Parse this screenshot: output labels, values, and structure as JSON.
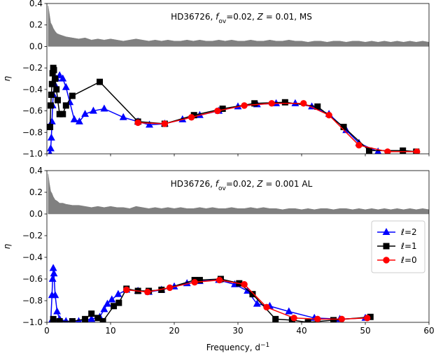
{
  "chart_data": [
    {
      "type": "line",
      "annotation": [
        "HD36726, ",
        "f",
        "ov",
        "=0.02, ",
        "Z",
        " = 0.01, MS"
      ],
      "ylabel": "η",
      "xlim": [
        0,
        60
      ],
      "ylim": [
        -1.0,
        0.4
      ],
      "yticks": [
        {
          "value": -1.0,
          "label": "−1.0"
        },
        {
          "value": -0.8,
          "label": "−0.8"
        },
        {
          "value": -0.6,
          "label": "−0.6"
        },
        {
          "value": -0.4,
          "label": "−0.4"
        },
        {
          "value": -0.2,
          "label": "−0.2"
        },
        {
          "value": 0,
          "label": "0.0"
        },
        0.2,
        0.4
      ],
      "spectrum": {
        "color": "#808080",
        "x": [
          0.2,
          0.4,
          0.6,
          0.8,
          1.0,
          1.3,
          1.6,
          2.0,
          2.5,
          3,
          4,
          5,
          6,
          7,
          8,
          9,
          10,
          11,
          12,
          13,
          14,
          15,
          16,
          17,
          18,
          19,
          20,
          21,
          22,
          23,
          24,
          25,
          26,
          27,
          28,
          29,
          30,
          31,
          32,
          33,
          34,
          35,
          36,
          37,
          38,
          39,
          40,
          41,
          42,
          43,
          44,
          45,
          46,
          47,
          48,
          49,
          50,
          51,
          52,
          53,
          54,
          55,
          56,
          57,
          58,
          59,
          60
        ],
        "values": [
          0.38,
          0.3,
          0.22,
          0.2,
          0.17,
          0.14,
          0.12,
          0.11,
          0.1,
          0.09,
          0.08,
          0.07,
          0.08,
          0.06,
          0.07,
          0.06,
          0.07,
          0.06,
          0.05,
          0.06,
          0.07,
          0.06,
          0.05,
          0.06,
          0.05,
          0.06,
          0.05,
          0.05,
          0.06,
          0.05,
          0.06,
          0.05,
          0.05,
          0.06,
          0.05,
          0.06,
          0.05,
          0.05,
          0.06,
          0.05,
          0.05,
          0.06,
          0.05,
          0.05,
          0.06,
          0.05,
          0.05,
          0.04,
          0.05,
          0.05,
          0.04,
          0.05,
          0.05,
          0.04,
          0.05,
          0.05,
          0.04,
          0.05,
          0.04,
          0.05,
          0.04,
          0.05,
          0.04,
          0.05,
          0.04,
          0.05,
          0.04
        ]
      },
      "series": [
        {
          "color": "#0000ff",
          "marker": "triangle",
          "x": [
            0.5,
            0.6,
            0.7,
            0.8,
            0.9,
            1.0,
            1.2,
            1.5,
            2.0,
            2.5,
            3.0,
            3.6,
            4.3,
            5.1,
            6.0,
            7.3,
            9.0,
            12.0,
            14.3,
            16.1,
            18.5,
            21.3,
            24.0,
            27.0,
            30.0,
            33.0,
            36.0,
            39.0,
            41.6,
            44.3,
            47.0,
            49.0,
            52.0
          ],
          "values": [
            -1.0,
            -0.95,
            -0.85,
            -0.7,
            -0.55,
            -0.45,
            -0.35,
            -0.3,
            -0.27,
            -0.3,
            -0.38,
            -0.52,
            -0.68,
            -0.7,
            -0.63,
            -0.6,
            -0.58,
            -0.66,
            -0.7,
            -0.73,
            -0.72,
            -0.68,
            -0.64,
            -0.6,
            -0.56,
            -0.54,
            -0.53,
            -0.53,
            -0.56,
            -0.63,
            -0.78,
            -0.9,
            -0.98
          ]
        },
        {
          "color": "#000000",
          "marker": "square",
          "x": [
            0.5,
            0.6,
            0.7,
            0.8,
            0.9,
            1.0,
            1.1,
            1.3,
            1.5,
            1.7,
            2.0,
            2.5,
            3.0,
            4.0,
            8.3,
            14.3,
            18.5,
            23.1,
            27.6,
            32.6,
            37.4,
            42.5,
            46.6,
            50.6,
            55.9,
            58.0
          ],
          "values": [
            -0.75,
            -0.55,
            -0.45,
            -0.35,
            -0.25,
            -0.2,
            -0.22,
            -0.3,
            -0.4,
            -0.5,
            -0.63,
            -0.63,
            -0.55,
            -0.46,
            -0.33,
            -0.7,
            -0.72,
            -0.64,
            -0.58,
            -0.53,
            -0.52,
            -0.56,
            -0.75,
            -0.97,
            -0.97,
            -0.98
          ]
        },
        {
          "color": "#ff0000",
          "marker": "circle",
          "x": [
            14.3,
            18.5,
            22.7,
            26.8,
            31.0,
            35.3,
            40.3,
            44.3,
            49.0,
            53.5,
            58.1
          ],
          "values": [
            -0.71,
            -0.72,
            -0.66,
            -0.6,
            -0.55,
            -0.53,
            -0.53,
            -0.64,
            -0.92,
            -0.98,
            -0.98
          ]
        }
      ]
    },
    {
      "type": "line",
      "annotation": [
        "HD36726, ",
        "f",
        "ov",
        "=0.02, ",
        "Z",
        " = 0.001 AL"
      ],
      "ylabel": "η",
      "xlabel": [
        "Frequency, d",
        "−1"
      ],
      "xlim": [
        0,
        60
      ],
      "ylim": [
        -1.0,
        0.4
      ],
      "xticks": [
        0,
        10,
        20,
        30,
        40,
        50,
        60
      ],
      "yticks": [
        {
          "value": -1.0,
          "label": "−1.0"
        },
        {
          "value": -0.8,
          "label": "−0.8"
        },
        {
          "value": -0.6,
          "label": "−0.6"
        },
        {
          "value": -0.4,
          "label": "−0.4"
        },
        {
          "value": -0.2,
          "label": "−0.2"
        },
        {
          "value": 0,
          "label": "0.0"
        },
        0.2,
        0.4
      ],
      "legend": "upper right",
      "spectrum": {
        "color": "#808080",
        "x": [
          0.2,
          0.4,
          0.6,
          0.8,
          1.0,
          1.3,
          1.6,
          2.0,
          2.5,
          3,
          4,
          5,
          6,
          7,
          8,
          9,
          10,
          11,
          12,
          13,
          14,
          15,
          16,
          17,
          18,
          19,
          20,
          21,
          22,
          23,
          24,
          25,
          26,
          27,
          28,
          29,
          30,
          31,
          32,
          33,
          34,
          35,
          36,
          37,
          38,
          39,
          40,
          41,
          42,
          43,
          44,
          45,
          46,
          47,
          48,
          49,
          50,
          51,
          52,
          53,
          54,
          55,
          56,
          57,
          58,
          59,
          60
        ],
        "values": [
          0.37,
          0.28,
          0.21,
          0.19,
          0.16,
          0.13,
          0.12,
          0.1,
          0.1,
          0.09,
          0.08,
          0.08,
          0.07,
          0.06,
          0.07,
          0.06,
          0.07,
          0.06,
          0.06,
          0.05,
          0.07,
          0.06,
          0.05,
          0.06,
          0.05,
          0.06,
          0.05,
          0.06,
          0.05,
          0.05,
          0.06,
          0.05,
          0.06,
          0.05,
          0.05,
          0.06,
          0.05,
          0.05,
          0.06,
          0.05,
          0.06,
          0.05,
          0.05,
          0.04,
          0.05,
          0.05,
          0.04,
          0.05,
          0.04,
          0.05,
          0.05,
          0.04,
          0.05,
          0.05,
          0.04,
          0.05,
          0.04,
          0.05,
          0.04,
          0.05,
          0.04,
          0.05,
          0.04,
          0.05,
          0.04,
          0.05,
          0.04
        ]
      },
      "series": [
        {
          "name": "ℓ=2",
          "color": "#0000ff",
          "marker": "triangle",
          "x": [
            0.6,
            0.8,
            0.9,
            1.0,
            1.1,
            1.3,
            1.6,
            2.0,
            3.0,
            5.0,
            7.0,
            8.3,
            9.0,
            9.5,
            10.2,
            11.2,
            12.5,
            14.3,
            16.0,
            18.0,
            20.0,
            22.0,
            24.0,
            27.0,
            29.5,
            31.5,
            33.0,
            35.0,
            38.0,
            42.0,
            46.0,
            50.0
          ],
          "values": [
            -1.0,
            -0.75,
            -0.6,
            -0.5,
            -0.55,
            -0.75,
            -0.9,
            -0.97,
            -0.99,
            -0.99,
            -0.97,
            -0.95,
            -0.88,
            -0.83,
            -0.79,
            -0.74,
            -0.7,
            -0.71,
            -0.72,
            -0.7,
            -0.67,
            -0.64,
            -0.62,
            -0.61,
            -0.65,
            -0.71,
            -0.83,
            -0.85,
            -0.9,
            -0.96,
            -0.97,
            -0.96
          ]
        },
        {
          "name": "ℓ=1",
          "color": "#000000",
          "marker": "square",
          "x": [
            1.0,
            2.0,
            4.0,
            6.0,
            7.0,
            8.0,
            8.8,
            10.5,
            11.3,
            12.5,
            14.3,
            16.0,
            18.0,
            23.2,
            24.0,
            27.3,
            30.2,
            32.3,
            35.9,
            38.5,
            41.0,
            45.0,
            50.8
          ],
          "values": [
            -0.97,
            -0.99,
            -0.99,
            -0.97,
            -0.92,
            -0.96,
            -0.99,
            -0.85,
            -0.82,
            -0.69,
            -0.71,
            -0.71,
            -0.7,
            -0.61,
            -0.61,
            -0.6,
            -0.64,
            -0.74,
            -0.97,
            -0.98,
            -1.0,
            -0.98,
            -0.95
          ]
        },
        {
          "name": "ℓ=0",
          "color": "#ff0000",
          "marker": "circle",
          "x": [
            12.5,
            15.8,
            19.3,
            23.2,
            27.1,
            31.0,
            34.5,
            38.8,
            42.5,
            46.3,
            50.3
          ],
          "values": [
            -0.7,
            -0.72,
            -0.68,
            -0.63,
            -0.61,
            -0.65,
            -0.86,
            -0.96,
            -0.97,
            -0.97,
            -0.96
          ]
        }
      ]
    }
  ]
}
